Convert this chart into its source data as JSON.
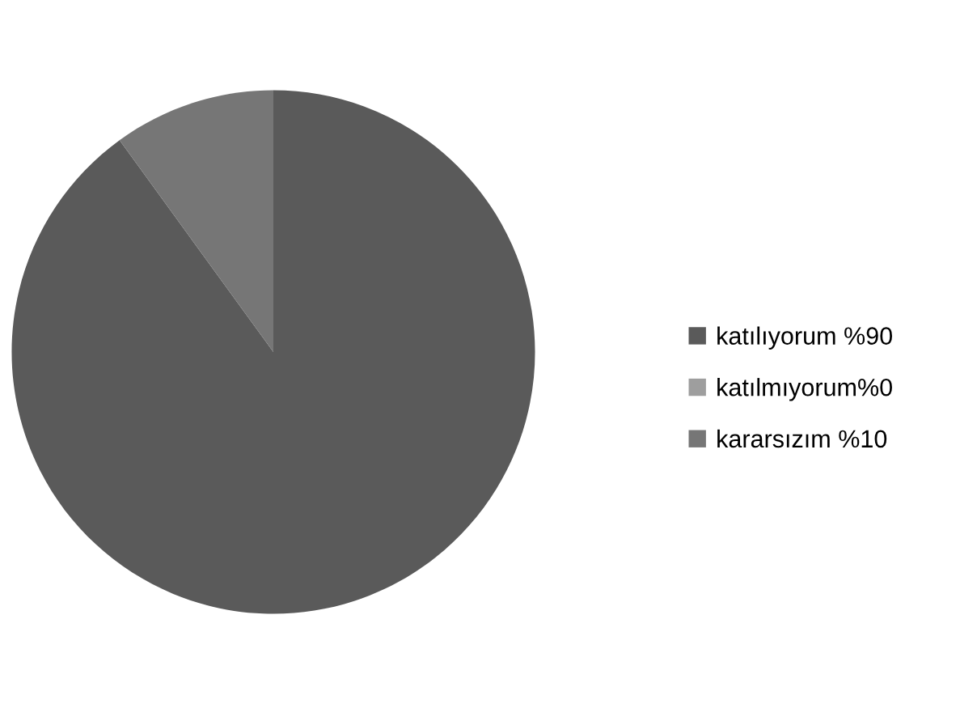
{
  "chart_data": {
    "type": "pie",
    "categories": [
      "katılıyorum %90",
      "katılmıyorum%0",
      "kararsızım %10"
    ],
    "values": [
      90,
      0,
      10
    ],
    "colors": [
      "#5a5a5a",
      "#9e9e9e",
      "#767676"
    ],
    "legend": "right"
  }
}
